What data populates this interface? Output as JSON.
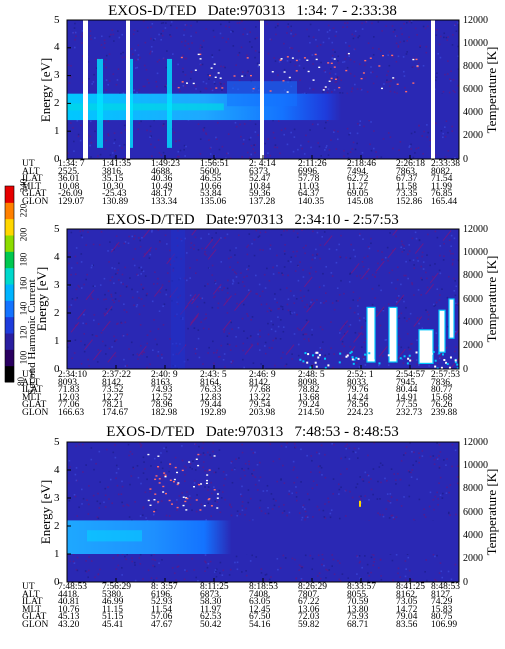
{
  "colorbar": {
    "title": "Second Harmonic Current",
    "ticks": [
      "80",
      "100",
      "120",
      "140",
      "160",
      "180",
      "200",
      "220",
      "240"
    ],
    "colors": [
      "#000000",
      "#2a0060",
      "#2a1ea0",
      "#1e3cdc",
      "#1473ff",
      "#00b4ff",
      "#00d9cc",
      "#00c850",
      "#8cdc00",
      "#ffd700",
      "#ff8000",
      "#e60000"
    ]
  },
  "chart_data": [
    {
      "type": "heatmap",
      "title": "EXOS-D/TED   Date:970313   1:34: 7 - 2:33:38",
      "ylabel": "Energy [eV]",
      "ylabel_right": "Temperature [K]",
      "ylim": [
        0,
        5
      ],
      "ylim_right": [
        0,
        12000
      ],
      "yticks": [
        "0",
        "1",
        "2",
        "3",
        "4",
        "5"
      ],
      "yticks_right": [
        "0",
        "2000",
        "4000",
        "6000",
        "8000",
        "10000",
        "12000"
      ],
      "ephemeris_labels": [
        "UT",
        "ALT",
        "ILAT",
        "MLT",
        "GLAT",
        "GLON"
      ],
      "ephemeris": [
        [
          "1:34: 7",
          "2525.",
          "36.01",
          "10.08",
          "-26.09",
          "129.07"
        ],
        [
          "1:41:35",
          "3816.",
          "35.15",
          "10.30",
          "-25.43",
          "130.89"
        ],
        [
          "1:49:23",
          "4688.",
          "40.36",
          "10.49",
          "48.17",
          "133.34"
        ],
        [
          "1:56:51",
          "5600.",
          "46.55",
          "10.66",
          "53.84",
          "135.06"
        ],
        [
          "2: 4:14",
          "6373.",
          "52.47",
          "10.84",
          "59.36",
          "137.28"
        ],
        [
          "2:11:26",
          "6996.",
          "57.78",
          "11.03",
          "64.37",
          "140.35"
        ],
        [
          "2:18:46",
          "7494.",
          "62.72",
          "11.27",
          "69.05",
          "145.08"
        ],
        [
          "2:26:18",
          "7863.",
          "67.37",
          "11.58",
          "73.35",
          "152.86"
        ],
        [
          "2:33:38",
          "8082.",
          "71.54",
          "11.99",
          "76.85",
          "165.44"
        ]
      ]
    },
    {
      "type": "heatmap",
      "title": "EXOS-D/TED   Date:970313   2:34:10 - 2:57:53",
      "ylabel": "Energy [eV]",
      "ylabel_right": "Temperature [K]",
      "ylim": [
        0,
        5
      ],
      "ylim_right": [
        0,
        12000
      ],
      "yticks": [
        "0",
        "1",
        "2",
        "3",
        "4",
        "5"
      ],
      "yticks_right": [
        "0",
        "2000",
        "4000",
        "6000",
        "8000",
        "10000",
        "12000"
      ],
      "ephemeris_labels": [
        "UT",
        "ALT",
        "ILAT",
        "MLT",
        "GLAT",
        "GLON"
      ],
      "ephemeris": [
        [
          "2:34:10",
          "8093.",
          "71.83",
          "12.03",
          "77.06",
          "166.63"
        ],
        [
          "2:37:22",
          "8142.",
          "73.52",
          "12.27",
          "78.21",
          "174.67"
        ],
        [
          "2:40: 9",
          "8163.",
          "74.93",
          "12.52",
          "78.96",
          "182.98"
        ],
        [
          "2:43: 5",
          "8164.",
          "76.33",
          "12.83",
          "79.44",
          "192.89"
        ],
        [
          "2:46: 9",
          "8142.",
          "77.68",
          "13.22",
          "79.54",
          "203.98"
        ],
        [
          "2:48: 5",
          "8098.",
          "78.82",
          "13.68",
          "79.24",
          "214.50"
        ],
        [
          "2:52: 1",
          "8033.",
          "79.76",
          "14.24",
          "78.56",
          "224.23"
        ],
        [
          "2:54:57",
          "7945.",
          "80.44",
          "14.91",
          "77.55",
          "232.73"
        ],
        [
          "2:57:53",
          "7836.",
          "80.77",
          "15.68",
          "76.26",
          "239.88"
        ]
      ]
    },
    {
      "type": "heatmap",
      "title": "EXOS-D/TED   Date:970313   7:48:53 - 8:48:53",
      "ylabel": "Energy [eV]",
      "ylabel_right": "Temperature [K]",
      "ylim": [
        0,
        5
      ],
      "ylim_right": [
        0,
        12000
      ],
      "yticks": [
        "0",
        "1",
        "2",
        "3",
        "4",
        "5"
      ],
      "yticks_right": [
        "0",
        "2000",
        "4000",
        "6000",
        "8000",
        "10000",
        "12000"
      ],
      "ephemeris_labels": [
        "UT",
        "ALT",
        "ILAT",
        "MLT",
        "GLAT",
        "GLON"
      ],
      "ephemeris": [
        [
          "7:48:53",
          "4418.",
          "40.81",
          "10.76",
          "45.13",
          "43.20"
        ],
        [
          "7:56:29",
          "5380.",
          "46.99",
          "11.15",
          "51.15",
          "45.41"
        ],
        [
          "8: 3:57",
          "6196.",
          "52.93",
          "11.54",
          "57.06",
          "47.67"
        ],
        [
          "8:11:25",
          "6873.",
          "58.30",
          "11.97",
          "62.53",
          "50.42"
        ],
        [
          "8:18:53",
          "7408.",
          "63.05",
          "12.45",
          "67.50",
          "54.16"
        ],
        [
          "8:26:29",
          "7807.",
          "67.22",
          "13.06",
          "72.03",
          "59.82"
        ],
        [
          "8:33:57",
          "8055.",
          "70.59",
          "13.80",
          "75.93",
          "68.71"
        ],
        [
          "8:41:25",
          "8162.",
          "73.05",
          "14.72",
          "79.04",
          "83.56"
        ],
        [
          "8:48:53",
          "8127.",
          "74.29",
          "15.83",
          "80.75",
          "106.99"
        ]
      ]
    }
  ]
}
